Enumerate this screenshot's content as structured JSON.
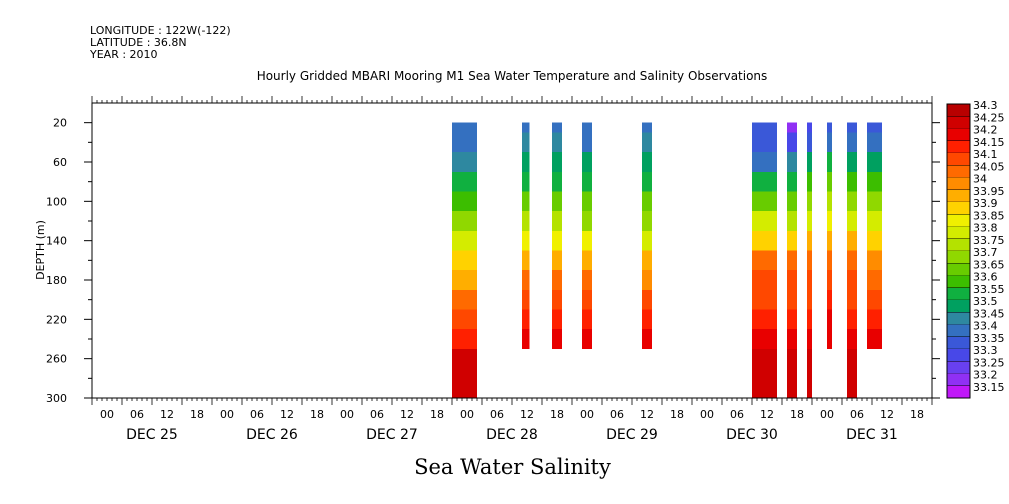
{
  "header": {
    "longitude": "LONGITUDE : 122W(-122)",
    "latitude": "LATITUDE : 36.8N",
    "year": "YEAR : 2010"
  },
  "chart_data": {
    "type": "heatmap",
    "title": "Hourly Gridded MBARI Mooring M1 Sea Water Temperature and Salinity Observations",
    "footer": "Sea Water Salinity",
    "ylabel": "DEPTH (m)",
    "xlabel": "",
    "ylim": [
      300,
      0
    ],
    "y_ticks": [
      20,
      60,
      100,
      140,
      180,
      220,
      260,
      300
    ],
    "x_range_hours": [
      0,
      168
    ],
    "x_tick_labels": [
      "00",
      "06",
      "12",
      "18",
      "00",
      "06",
      "12",
      "18",
      "00",
      "06",
      "12",
      "18",
      "00",
      "06",
      "12",
      "18",
      "00",
      "06",
      "12",
      "18",
      "00",
      "06",
      "12",
      "18",
      "00",
      "06",
      "12",
      "18"
    ],
    "date_labels": [
      "DEC 25",
      "DEC 26",
      "DEC 27",
      "DEC 28",
      "DEC 29",
      "DEC 30",
      "DEC 31"
    ],
    "colorbar": {
      "levels": [
        "34.3",
        "34.25",
        "34.2",
        "34.15",
        "34.1",
        "34.05",
        "34",
        "33.95",
        "33.9",
        "33.85",
        "33.8",
        "33.75",
        "33.7",
        "33.65",
        "33.6",
        "33.55",
        "33.5",
        "33.45",
        "33.4",
        "33.35",
        "33.3",
        "33.25",
        "33.2",
        "33.15"
      ],
      "colors": [
        "#b80000",
        "#d00000",
        "#e80000",
        "#ff2000",
        "#ff4800",
        "#ff6a00",
        "#ff8c00",
        "#ffae00",
        "#ffd200",
        "#f0f000",
        "#d4ec00",
        "#b4e200",
        "#90d800",
        "#68cc00",
        "#3cbe00",
        "#10b040",
        "#00a060",
        "#2e88a0",
        "#3470c0",
        "#3a58d8",
        "#4848e8",
        "#6840f0",
        "#9030f4",
        "#c018f8"
      ]
    },
    "value_range": [
      33.15,
      34.35
    ],
    "profile_depths": [
      20,
      40,
      60,
      80,
      100,
      120,
      140,
      160,
      180,
      200,
      220,
      240,
      260,
      280,
      300
    ],
    "series": [
      {
        "start": 72,
        "end": 77,
        "values": [
          33.4,
          33.42,
          33.48,
          33.55,
          33.6,
          33.7,
          33.82,
          33.92,
          33.98,
          34.05,
          34.12,
          34.18,
          34.25,
          34.28,
          34.28
        ]
      },
      {
        "start": 86,
        "end": 87.5,
        "values": [
          33.42,
          33.45,
          33.52,
          33.58,
          33.66,
          33.75,
          33.85,
          33.98,
          34.06,
          34.1,
          34.15,
          34.22,
          null,
          null,
          null
        ]
      },
      {
        "start": 92,
        "end": 94,
        "values": [
          33.42,
          33.45,
          33.52,
          33.58,
          33.66,
          33.75,
          33.87,
          33.98,
          34.06,
          34.1,
          34.15,
          34.22,
          null,
          null,
          null
        ]
      },
      {
        "start": 98,
        "end": 100,
        "values": [
          33.4,
          33.43,
          33.5,
          33.56,
          33.65,
          33.74,
          33.86,
          33.98,
          34.06,
          34.1,
          34.15,
          34.22,
          null,
          null,
          null
        ]
      },
      {
        "start": 110,
        "end": 112,
        "values": [
          33.42,
          33.45,
          33.52,
          33.58,
          33.65,
          33.74,
          33.84,
          33.95,
          34.04,
          34.1,
          34.15,
          34.22,
          null,
          null,
          null
        ]
      },
      {
        "start": 132,
        "end": 137,
        "values": [
          33.35,
          33.35,
          33.4,
          33.55,
          33.68,
          33.8,
          33.92,
          34.05,
          34.1,
          34.12,
          34.18,
          34.22,
          34.25,
          34.28,
          34.28
        ]
      },
      {
        "start": 139,
        "end": 141,
        "values": [
          33.2,
          33.3,
          33.45,
          33.55,
          33.65,
          33.78,
          33.92,
          34.05,
          34.1,
          34.12,
          34.18,
          34.22,
          34.25,
          34.28,
          34.28
        ]
      },
      {
        "start": 143,
        "end": 144,
        "values": [
          33.3,
          33.35,
          33.5,
          33.6,
          33.7,
          33.82,
          33.95,
          34.05,
          34.1,
          34.12,
          34.18,
          34.22,
          34.25,
          34.28,
          34.28
        ]
      },
      {
        "start": 147,
        "end": 148,
        "values": [
          33.35,
          33.4,
          33.55,
          33.65,
          33.75,
          33.87,
          33.98,
          34.06,
          34.1,
          34.15,
          34.2,
          34.22,
          null,
          null,
          null
        ]
      },
      {
        "start": 151,
        "end": 153,
        "values": [
          33.35,
          33.4,
          33.52,
          33.6,
          33.7,
          33.82,
          33.95,
          34.05,
          34.1,
          34.12,
          34.18,
          34.22,
          34.26,
          34.28,
          34.28
        ]
      },
      {
        "start": 155,
        "end": 158,
        "values": [
          33.38,
          33.42,
          33.52,
          33.6,
          33.7,
          33.82,
          33.93,
          34.03,
          34.08,
          34.12,
          34.18,
          34.22,
          null,
          null,
          null
        ]
      }
    ]
  }
}
